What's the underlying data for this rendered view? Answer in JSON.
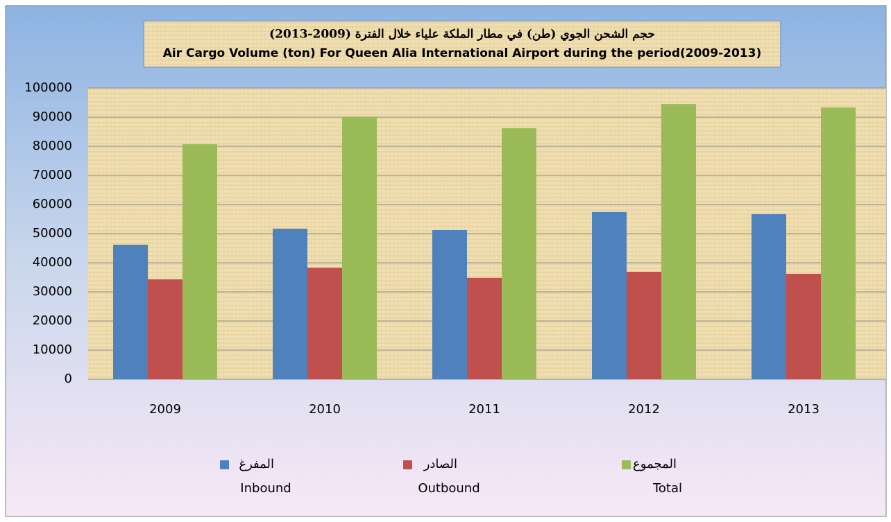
{
  "chart_data": {
    "type": "bar",
    "title": "حجم الشحن الجوي (طن) في مطار الملكة علياء خلال الفترة (2009-2013)",
    "subtitle": "Air Cargo Volume (ton) For Queen Alia International Airport during the period(2009-2013)",
    "categories": [
      "2009",
      "2010",
      "2011",
      "2012",
      "2013"
    ],
    "series": [
      {
        "name": "المفرغ",
        "name_en": "Inbound",
        "color": "#4f81bd",
        "values": [
          46200,
          51700,
          51200,
          57400,
          56700
        ]
      },
      {
        "name": "الصادر",
        "name_en": "Outbound",
        "color": "#c0504d",
        "values": [
          34300,
          38300,
          34800,
          36900,
          36200
        ]
      },
      {
        "name": "المجموع",
        "name_en": "Total",
        "color": "#9bbb59",
        "values": [
          80700,
          90200,
          86200,
          94500,
          93300
        ]
      }
    ],
    "ylim": [
      0,
      100000
    ],
    "yticks": [
      0,
      10000,
      20000,
      30000,
      40000,
      50000,
      60000,
      70000,
      80000,
      90000,
      100000
    ],
    "grid": true,
    "legend": "bottom"
  }
}
